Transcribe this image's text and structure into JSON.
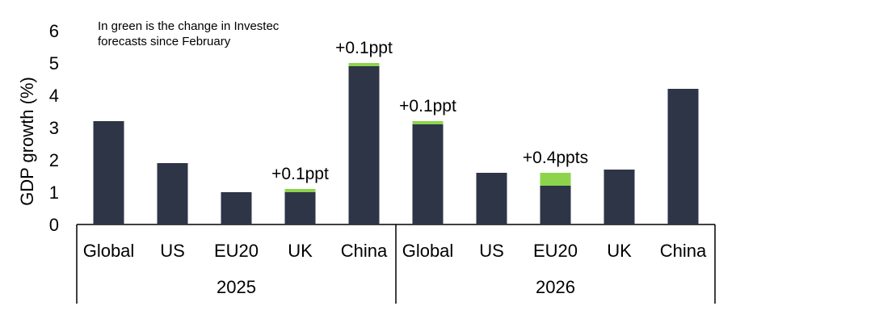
{
  "chart_data": {
    "type": "bar",
    "stacked": true,
    "ylabel": "GDP growth (%)",
    "ylim": [
      0,
      6
    ],
    "yticks": [
      "0",
      "1",
      "2",
      "3",
      "4",
      "5",
      "6"
    ],
    "note": [
      "In green is the change in Investec",
      "forecasts since February"
    ],
    "colors": {
      "base": "#2d3547",
      "change": "#8dd44d"
    },
    "groups": [
      {
        "label": "2025",
        "categories": [
          "Global",
          "US",
          "EU20",
          "UK",
          "China"
        ],
        "base": [
          3.2,
          1.9,
          1.0,
          1.0,
          4.9
        ],
        "change": [
          0,
          0,
          0,
          0.1,
          0.1
        ],
        "annotations": [
          "",
          "",
          "",
          "+0.1ppt",
          "+0.1ppt"
        ]
      },
      {
        "label": "2026",
        "categories": [
          "Global",
          "US",
          "EU20",
          "UK",
          "China"
        ],
        "base": [
          3.1,
          1.6,
          1.2,
          1.7,
          4.2
        ],
        "change": [
          0.1,
          0,
          0.4,
          0,
          0
        ],
        "annotations": [
          "+0.1ppt",
          "",
          "+0.4ppts",
          "",
          ""
        ]
      }
    ]
  }
}
